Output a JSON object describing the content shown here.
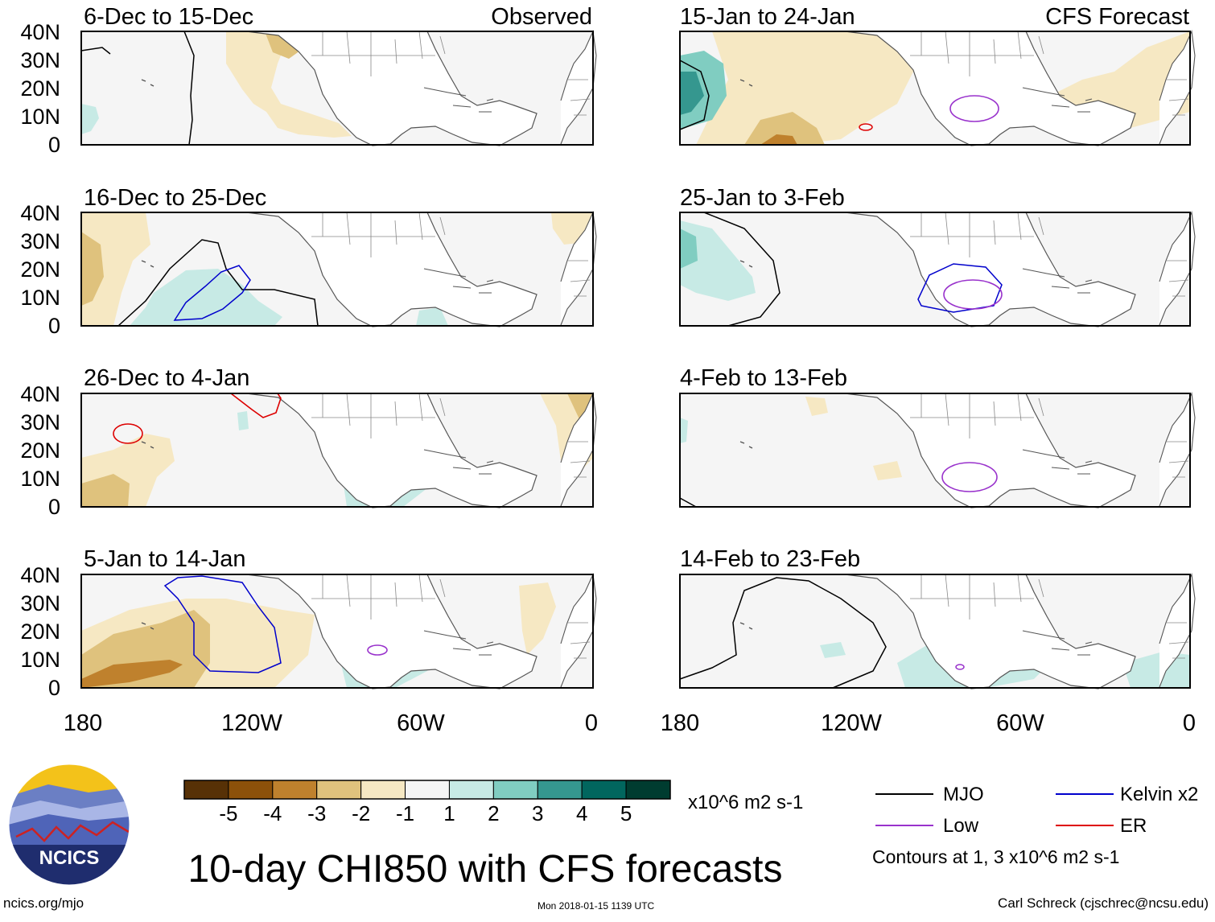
{
  "title": "10-day CHI850 with CFS forecasts",
  "footer": {
    "url": "ncics.org/mjo",
    "timestamp": "Mon 2018-01-15 1139 UTC",
    "author": "Carl Schreck (cjschrec@ncsu.edu)"
  },
  "logo_text": "NCICS",
  "colorbar": {
    "units": "x10^6 m2 s-1",
    "tick_labels": [
      "-5",
      "-4",
      "-3",
      "-2",
      "-1",
      "1",
      "2",
      "3",
      "4",
      "5"
    ],
    "colors": [
      "#573106",
      "#8c510a",
      "#bf812d",
      "#dfc27d",
      "#f6e8c3",
      "#f5f5f5",
      "#c7eae5",
      "#80cdc1",
      "#35978f",
      "#01665e",
      "#003c30"
    ]
  },
  "legend": {
    "items": [
      {
        "label": "MJO",
        "color": "#000000"
      },
      {
        "label": "Kelvin x2",
        "color": "#0000cc"
      },
      {
        "label": "Low",
        "color": "#9932cc"
      },
      {
        "label": "ER",
        "color": "#dd0000"
      }
    ],
    "note": "Contours at 1, 3 x10^6 m2 s-1"
  },
  "axes": {
    "y_ticks": [
      "40N",
      "30N",
      "20N",
      "10N",
      "0"
    ],
    "x_ticks": [
      "180",
      "120W",
      "60W",
      "0"
    ]
  },
  "left_column_label": "Observed",
  "right_column_label": "CFS Forecast",
  "panels_left": [
    {
      "period": "6-Dec to 15-Dec"
    },
    {
      "period": "16-Dec to 25-Dec"
    },
    {
      "period": "26-Dec to 4-Jan"
    },
    {
      "period": "5-Jan to 14-Jan"
    }
  ],
  "panels_right": [
    {
      "period": "15-Jan to 24-Jan"
    },
    {
      "period": "25-Jan to 3-Feb"
    },
    {
      "period": "4-Feb to 13-Feb"
    },
    {
      "period": "14-Feb to 23-Feb"
    }
  ]
}
